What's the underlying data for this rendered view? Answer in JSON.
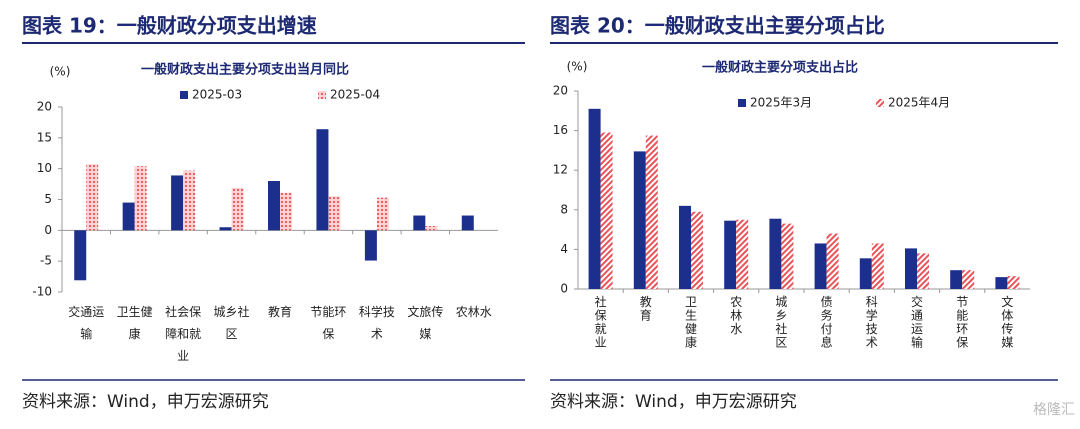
{
  "panels": [
    {
      "header": "图表 19：一般财政分项支出增速",
      "source": "资料来源：Wind，申万宏源研究"
    },
    {
      "header": "图表 20：一般财政支出主要分项占比",
      "source": "资料来源：Wind，申万宏源研究"
    }
  ],
  "watermark": "格隆汇",
  "chart_data": [
    {
      "type": "bar",
      "title": "一般财政支出主要分项支出当月同比",
      "y_unit": "(%)",
      "categories": [
        "交通运输",
        "卫生健康",
        "社会保障和就业",
        "城乡社区",
        "教育",
        "节能环保",
        "科学技术",
        "文旅传媒",
        "农林水"
      ],
      "series": [
        {
          "name": "2025-03",
          "color": "#1c2f8c",
          "pattern": "solid",
          "values": [
            -8.1,
            4.5,
            8.9,
            0.5,
            8.0,
            16.4,
            -4.9,
            2.4,
            2.4
          ]
        },
        {
          "name": "2025-04",
          "color": "#e8545a",
          "pattern": "dots",
          "values": [
            10.7,
            10.4,
            9.7,
            6.9,
            6.1,
            5.5,
            5.3,
            0.7,
            null
          ]
        }
      ],
      "ylim": [
        -10,
        20
      ],
      "yticks": [
        -10,
        -5,
        0,
        5,
        10,
        15,
        20
      ],
      "grid": false
    },
    {
      "type": "bar",
      "title": "一般财政主要分项支出占比",
      "y_unit": "(%)",
      "categories": [
        "社保就业",
        "教育",
        "卫生健康",
        "农林水",
        "城乡社区",
        "债务付息",
        "科学技术",
        "交通运输",
        "节能环保",
        "文体传媒"
      ],
      "series": [
        {
          "name": "2025年3月",
          "color": "#1c2f8c",
          "pattern": "solid",
          "values": [
            18.2,
            13.9,
            8.4,
            6.9,
            7.1,
            4.6,
            3.1,
            4.1,
            1.9,
            1.2
          ]
        },
        {
          "name": "2025年4月",
          "color": "#e8545a",
          "pattern": "stripes",
          "values": [
            15.8,
            15.5,
            7.8,
            7.0,
            6.6,
            5.6,
            4.6,
            3.6,
            1.9,
            1.3
          ]
        }
      ],
      "ylim": [
        0,
        20
      ],
      "yticks": [
        0,
        4,
        8,
        12,
        16,
        20
      ],
      "grid": false
    }
  ]
}
